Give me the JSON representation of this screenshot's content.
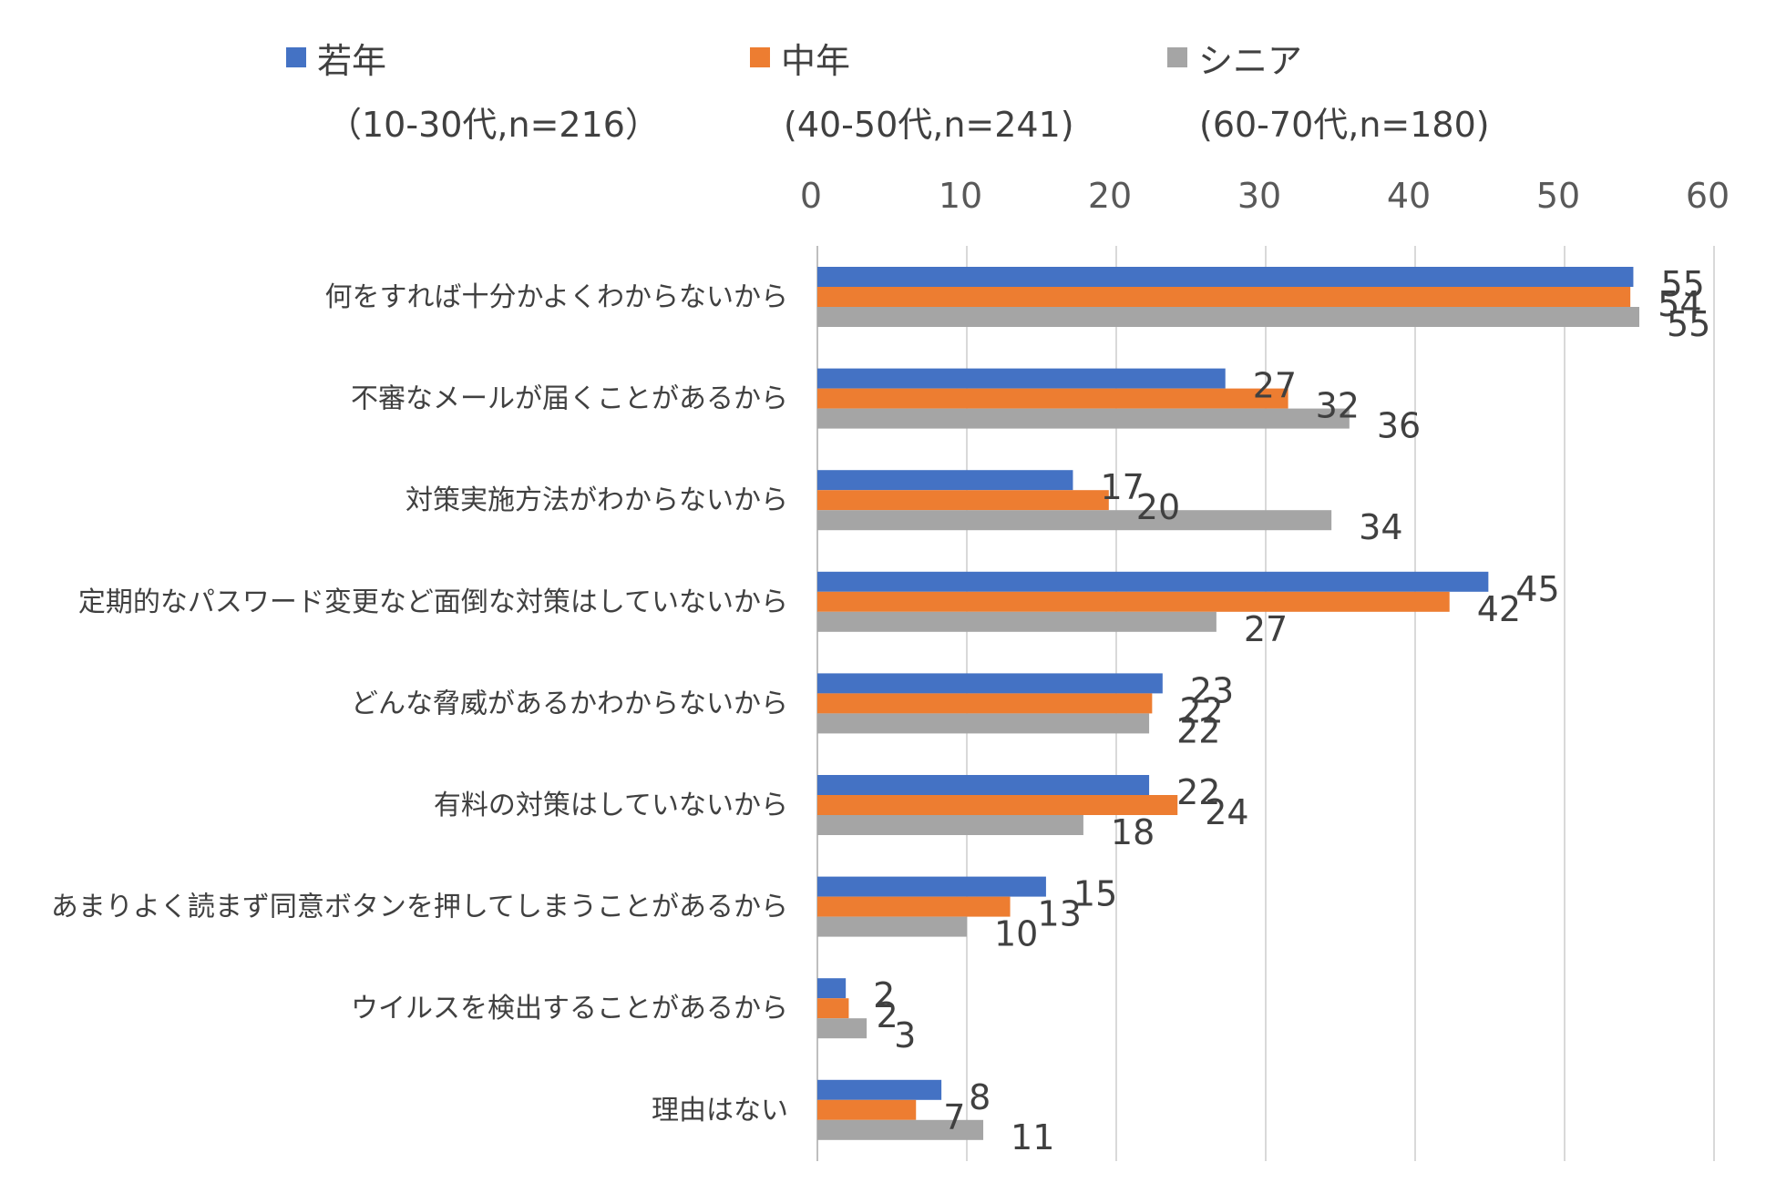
{
  "chart_data": {
    "type": "bar",
    "orientation": "horizontal",
    "categories": [
      "何をすれば十分かよくわからないから",
      "不審なメールが届くことがあるから",
      "対策実施方法がわからないから",
      "定期的なパスワード変更など面倒な対策はしていないから",
      "どんな脅威があるかわからないから",
      "有料の対策はしていないから",
      "あまりよく読まず同意ボタンを押してしまうことがあるから",
      "ウイルスを検出することがあるから",
      "理由はない"
    ],
    "series": [
      {
        "name": "若年",
        "subtitle": "（10-30代,n=216）",
        "color": "#4472C4",
        "values": [
          54.6,
          27.3,
          17.1,
          44.9,
          23.1,
          22.2,
          15.3,
          1.9,
          8.3
        ],
        "labels": [
          "55",
          "27",
          "17",
          "45",
          "23",
          "22",
          "15",
          "2",
          "8"
        ]
      },
      {
        "name": "中年",
        "subtitle": "(40-50代,n=241)",
        "color": "#ED7D31",
        "values": [
          54.4,
          31.5,
          19.5,
          42.3,
          22.4,
          24.1,
          12.9,
          2.1,
          6.6
        ],
        "labels": [
          "54",
          "32",
          "20",
          "42",
          "22",
          "24",
          "13",
          "2",
          "7"
        ]
      },
      {
        "name": "シニア",
        "subtitle": "(60-70代,n=180)",
        "color": "#A5A5A5",
        "values": [
          55.0,
          35.6,
          34.4,
          26.7,
          22.2,
          17.8,
          10.0,
          3.3,
          11.1
        ],
        "labels": [
          "55",
          "36",
          "34",
          "27",
          "22",
          "18",
          "10",
          "3",
          "11"
        ]
      }
    ],
    "xlim": [
      0,
      60
    ],
    "ticks": [
      "0",
      "10",
      "20",
      "30",
      "40",
      "50",
      "60"
    ],
    "grid": true,
    "legend_position": "top",
    "gridline_color": "#D9D9D9"
  }
}
